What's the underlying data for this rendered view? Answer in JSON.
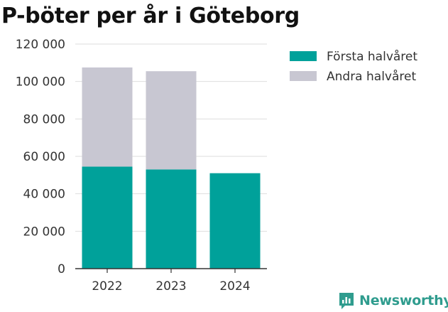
{
  "chart_data": {
    "type": "bar",
    "stacked": true,
    "title": "P-böter per år i Göteborg",
    "categories": [
      "2022",
      "2023",
      "2024"
    ],
    "series": [
      {
        "name": "Första halvåret",
        "color": "#00a19a",
        "values": [
          54500,
          53000,
          51000
        ]
      },
      {
        "name": "Andra halvåret",
        "color": "#c8c7d2",
        "values": [
          53000,
          52500,
          0
        ]
      }
    ],
    "ylim": [
      0,
      120000
    ],
    "yticks": [
      0,
      20000,
      40000,
      60000,
      80000,
      100000,
      120000
    ],
    "ytick_labels": [
      "0",
      "20 000",
      "40 000",
      "60 000",
      "80 000",
      "100 000",
      "120 000"
    ],
    "grid": true,
    "legend_position": "top-right"
  },
  "brand": {
    "name": "Newsworthy",
    "icon": "newsworthy-logo-icon",
    "color": "#2f9c8e"
  }
}
